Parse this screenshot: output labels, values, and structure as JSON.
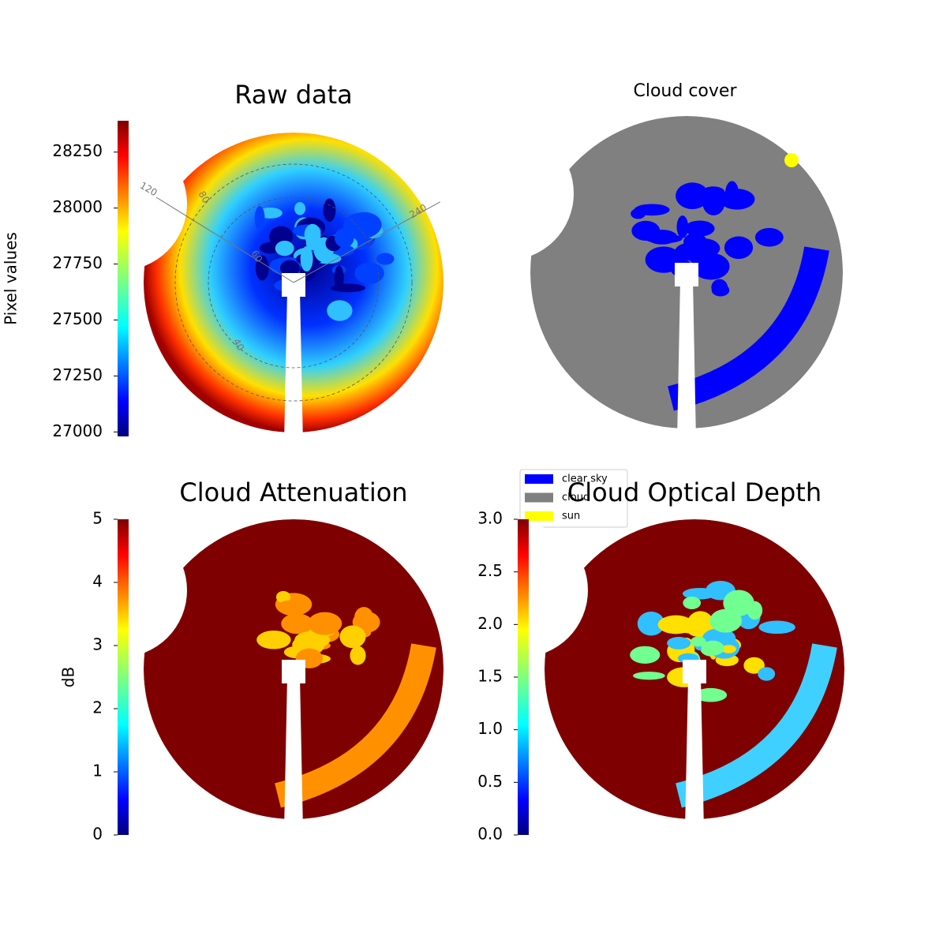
{
  "chart_data": [
    {
      "type": "image",
      "title": "Raw data",
      "colormap": "jet",
      "colorbar_label": "Pixel values",
      "clim": [
        26980,
        28390
      ],
      "cticks": [
        27000,
        27250,
        27500,
        27750,
        28000,
        28250
      ],
      "polar_labels": [
        "120",
        "80",
        "60",
        "40",
        "240"
      ]
    },
    {
      "type": "image",
      "title": "Cloud cover",
      "legend": "lower left",
      "series": [
        {
          "name": "clear sky",
          "color": "#0000ff"
        },
        {
          "name": "cloud",
          "color": "#808080"
        },
        {
          "name": "sun",
          "color": "#ffff00"
        }
      ]
    },
    {
      "type": "image",
      "title": "Cloud Attenuation",
      "colormap": "jet",
      "colorbar_label": "dB",
      "clim": [
        0,
        5
      ],
      "cticks": [
        0,
        1,
        2,
        3,
        4,
        5
      ]
    },
    {
      "type": "image",
      "title": "Cloud Optical Depth",
      "colormap": "jet",
      "clim": [
        0,
        3
      ],
      "cticks": [
        {
          "value": 0,
          "label": "0.0"
        },
        {
          "value": 0.5,
          "label": "0.5"
        },
        {
          "value": 1,
          "label": "1.0"
        },
        {
          "value": 1.5,
          "label": "1.5"
        },
        {
          "value": 2,
          "label": "2.0"
        },
        {
          "value": 2.5,
          "label": "2.5"
        },
        {
          "value": 3,
          "label": "3.0"
        }
      ]
    }
  ]
}
